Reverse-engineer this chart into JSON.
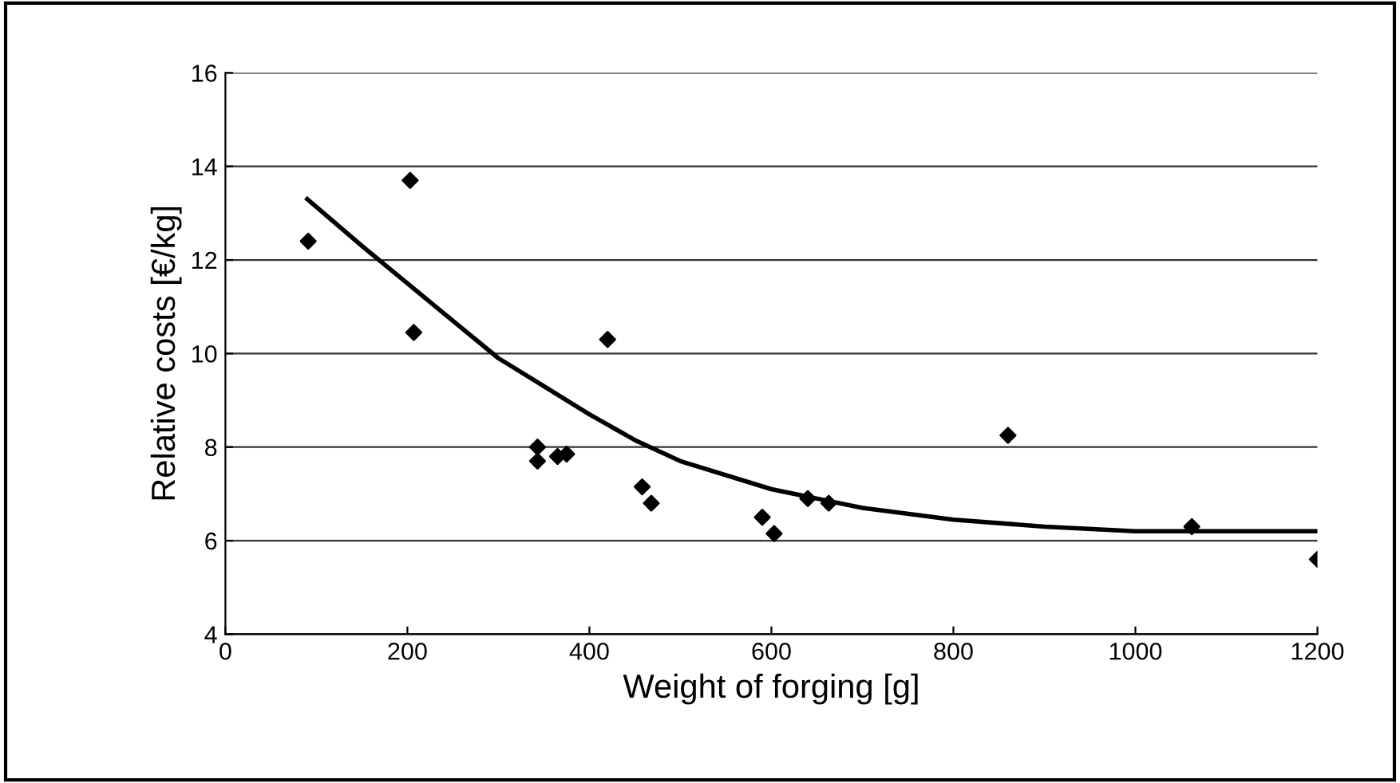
{
  "chart_data": {
    "type": "scatter",
    "xlabel": "Weight of forging [g]",
    "ylabel": "Relative costs [€/kg]",
    "xlim": [
      0,
      1200
    ],
    "xticks": [
      0,
      200,
      400,
      600,
      800,
      1000,
      1200
    ],
    "ylim": [
      4,
      16
    ],
    "yticks": [
      4,
      6,
      8,
      10,
      12,
      14,
      16
    ],
    "grid": "y",
    "legend": false,
    "series": [
      {
        "color": "#000000",
        "marker": "diamond",
        "x": [
          91,
          203,
          207,
          343,
          343,
          360,
          365,
          370,
          375,
          420,
          458,
          468,
          590,
          603,
          640,
          663,
          860,
          1062,
          1200
        ],
        "values": [
          12.4,
          13.7,
          10.45,
          8.0,
          7.7,
          null,
          7.8,
          null,
          7.85,
          10.3,
          7.15,
          6.8,
          6.5,
          6.15,
          6.9,
          6.8,
          8.25,
          6.3,
          5.6
        ]
      },
      {
        "type": "line",
        "color": "#000000",
        "marker": "none",
        "line_style": "solid",
        "x": [
          90,
          150,
          200,
          250,
          300,
          350,
          400,
          450,
          500,
          600,
          700,
          800,
          900,
          1000,
          1100,
          1200
        ],
        "values": [
          13.3,
          12.3,
          11.5,
          10.7,
          9.9,
          9.3,
          8.7,
          8.15,
          7.7,
          7.1,
          6.7,
          6.45,
          6.3,
          6.2,
          6.2,
          6.2
        ]
      }
    ]
  }
}
